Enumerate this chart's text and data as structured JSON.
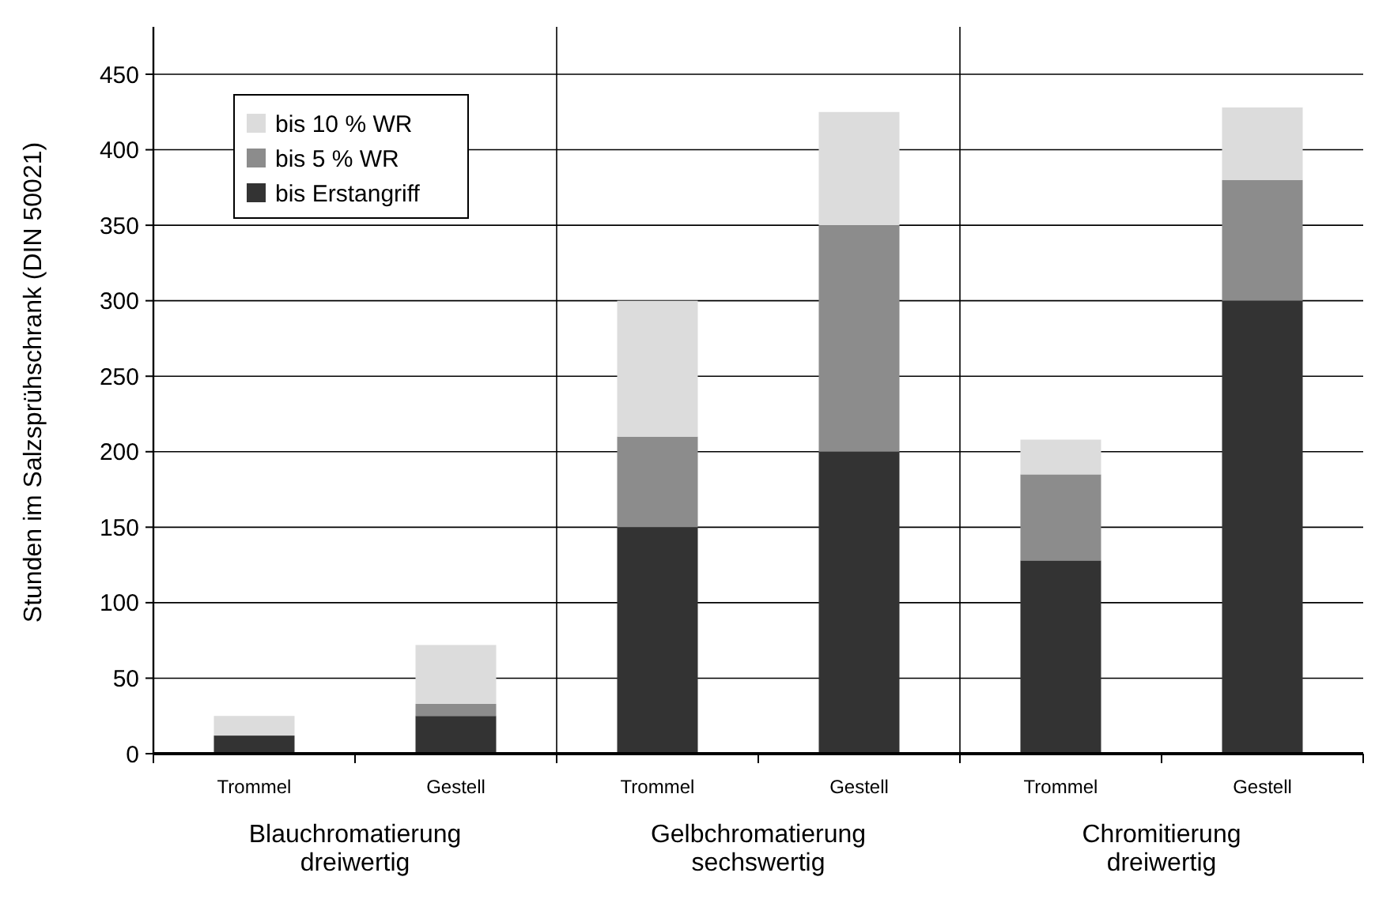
{
  "chart_data": {
    "type": "bar",
    "stacked": true,
    "ylabel": "Stunden im Salzsprühschrank (DIN 50021)",
    "categories": [
      "Trommel",
      "Gestell",
      "Trommel",
      "Gestell",
      "Trommel",
      "Gestell"
    ],
    "series": [
      {
        "name": "bis Erstangriff",
        "color": "#333333",
        "values": [
          12,
          25,
          150,
          200,
          128,
          300
        ]
      },
      {
        "name": "bis 5 % WR",
        "color": "#8c8c8c",
        "values": [
          0,
          8,
          60,
          150,
          57,
          80
        ]
      },
      {
        "name": "bis 10 % WR",
        "color": "#dcdcdc",
        "values": [
          13,
          39,
          90,
          75,
          23,
          48
        ]
      }
    ],
    "ylim": [
      0,
      450
    ],
    "yticks": [
      0,
      50,
      100,
      150,
      200,
      250,
      300,
      350,
      400,
      450
    ],
    "grid": "y",
    "legend": "top left",
    "annotations": [
      "Blauchromatierung dreiwertig",
      "Gelbchromatierung sechswertig",
      "Chromitierung dreiwertig"
    ]
  }
}
